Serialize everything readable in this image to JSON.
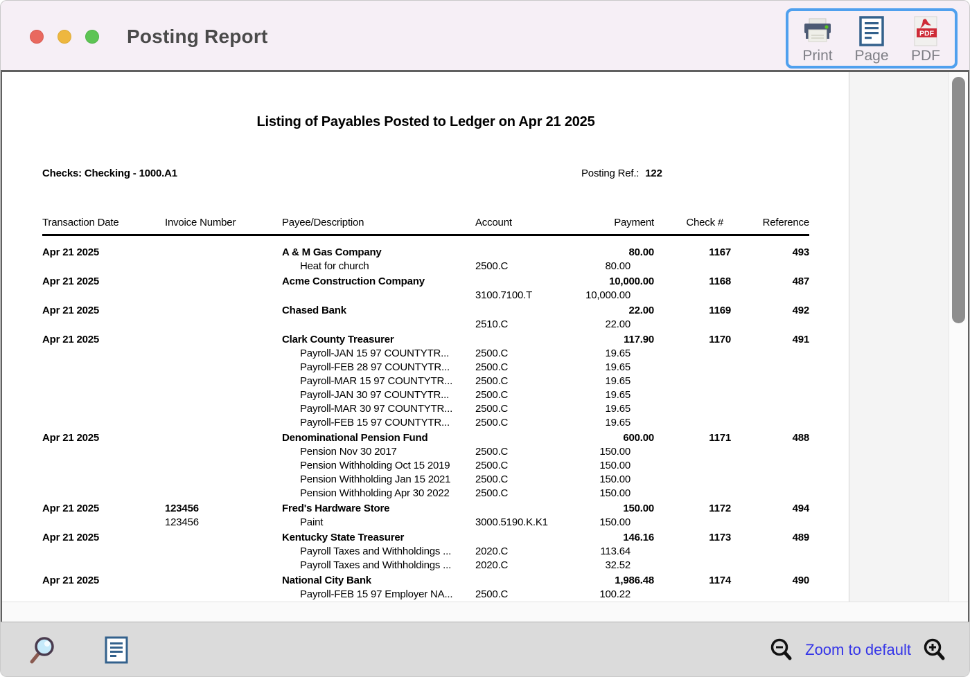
{
  "window": {
    "title": "Posting Report"
  },
  "toolbar": {
    "print_label": "Print",
    "page_label": "Page",
    "pdf_label": "PDF",
    "pdf_badge": "PDF"
  },
  "report": {
    "title": "Listing of Payables Posted to Ledger on Apr 21 2025",
    "account_line": "Checks: Checking - 1000.A1",
    "posting_ref_label": "Posting Ref.:",
    "posting_ref_value": "122",
    "columns": [
      "Transaction Date",
      "Invoice Number",
      "Payee/Description",
      "Account",
      "Payment",
      "Check #",
      "Reference"
    ],
    "rows": [
      {
        "date": "Apr 21 2025",
        "invoice": "",
        "payee": "A & M Gas Company",
        "payment": "80.00",
        "check": "1167",
        "reference": "493",
        "details": [
          {
            "invoice": "",
            "desc": "Heat for church",
            "account": "2500.C",
            "amount": "80.00"
          }
        ]
      },
      {
        "date": "Apr 21 2025",
        "invoice": "",
        "payee": "Acme Construction Company",
        "payment": "10,000.00",
        "check": "1168",
        "reference": "487",
        "details": [
          {
            "invoice": "",
            "desc": "",
            "account": "3100.7100.T",
            "amount": "10,000.00"
          }
        ]
      },
      {
        "date": "Apr 21 2025",
        "invoice": "",
        "payee": "Chased Bank",
        "payment": "22.00",
        "check": "1169",
        "reference": "492",
        "details": [
          {
            "invoice": "",
            "desc": "",
            "account": "2510.C",
            "amount": "22.00"
          }
        ]
      },
      {
        "date": "Apr 21 2025",
        "invoice": "",
        "payee": "Clark County Treasurer",
        "payment": "117.90",
        "check": "1170",
        "reference": "491",
        "details": [
          {
            "invoice": "",
            "desc": "Payroll-JAN 15 97 COUNTYTR...",
            "account": "2500.C",
            "amount": "19.65"
          },
          {
            "invoice": "",
            "desc": "Payroll-FEB 28 97 COUNTYTR...",
            "account": "2500.C",
            "amount": "19.65"
          },
          {
            "invoice": "",
            "desc": "Payroll-MAR 15 97 COUNTYTR...",
            "account": "2500.C",
            "amount": "19.65"
          },
          {
            "invoice": "",
            "desc": "Payroll-JAN 30 97 COUNTYTR...",
            "account": "2500.C",
            "amount": "19.65"
          },
          {
            "invoice": "",
            "desc": "Payroll-MAR 30 97 COUNTYTR...",
            "account": "2500.C",
            "amount": "19.65"
          },
          {
            "invoice": "",
            "desc": "Payroll-FEB 15 97 COUNTYTR...",
            "account": "2500.C",
            "amount": "19.65"
          }
        ]
      },
      {
        "date": "Apr 21 2025",
        "invoice": "",
        "payee": "Denominational Pension Fund",
        "payment": "600.00",
        "check": "1171",
        "reference": "488",
        "details": [
          {
            "invoice": "",
            "desc": "Pension Nov 30 2017",
            "account": "2500.C",
            "amount": "150.00"
          },
          {
            "invoice": "",
            "desc": "Pension Withholding Oct 15 2019",
            "account": "2500.C",
            "amount": "150.00"
          },
          {
            "invoice": "",
            "desc": "Pension Withholding Jan 15 2021",
            "account": "2500.C",
            "amount": "150.00"
          },
          {
            "invoice": "",
            "desc": "Pension Withholding Apr 30 2022",
            "account": "2500.C",
            "amount": "150.00"
          }
        ]
      },
      {
        "date": "Apr 21 2025",
        "invoice": "123456",
        "payee": "Fred's Hardware Store",
        "payment": "150.00",
        "check": "1172",
        "reference": "494",
        "details": [
          {
            "invoice": "123456",
            "desc": "Paint",
            "account": "3000.5190.K.K1",
            "amount": "150.00"
          }
        ]
      },
      {
        "date": "Apr 21 2025",
        "invoice": "",
        "payee": "Kentucky State Treasurer",
        "payment": "146.16",
        "check": "1173",
        "reference": "489",
        "details": [
          {
            "invoice": "",
            "desc": "Payroll Taxes and Withholdings ...",
            "account": "2020.C",
            "amount": "113.64"
          },
          {
            "invoice": "",
            "desc": "Payroll Taxes and Withholdings ...",
            "account": "2020.C",
            "amount": "32.52"
          }
        ]
      },
      {
        "date": "Apr 21 2025",
        "invoice": "",
        "payee": "National City Bank",
        "payment": "1,986.48",
        "check": "1174",
        "reference": "490",
        "details": [
          {
            "invoice": "",
            "desc": "Payroll-FEB 15 97 Employer NA...",
            "account": "2500.C",
            "amount": "100.22"
          }
        ]
      }
    ]
  },
  "footer": {
    "zoom_to_default_label": "Zoom to default"
  },
  "colors": {
    "titlebar_bg": "#f6eff6",
    "toolbar_selection_blue": "#4fa0ee",
    "traffic_red": "#e9695f",
    "traffic_yellow": "#eeb73f",
    "traffic_green": "#5dc454",
    "link_blue": "#3535e8",
    "footer_bg": "#dbdbdb",
    "pdf_red": "#ce2b37",
    "icon_steel_blue": "#33618c",
    "frame_gray": "#606060"
  }
}
